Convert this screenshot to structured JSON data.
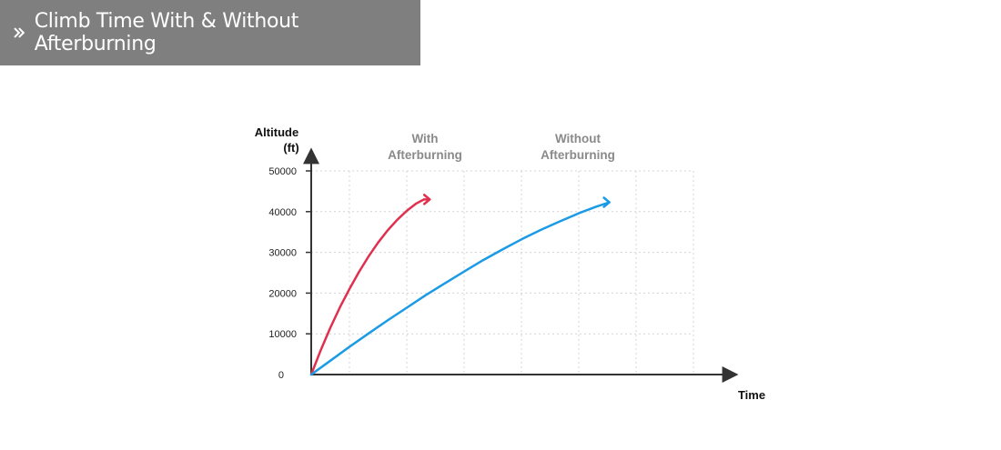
{
  "header": {
    "title": "Climb Time With & Without Afterburning"
  },
  "chart_data": {
    "type": "line",
    "xlabel": "Time",
    "ylabel": [
      "Altitude",
      "(ft)"
    ],
    "yticks": [
      0,
      10000,
      20000,
      30000,
      40000,
      50000
    ],
    "ylim": [
      0,
      50000
    ],
    "xlim": [
      0,
      10
    ],
    "x_gridlines": [
      1,
      2.5,
      4,
      5.5,
      7,
      8.5,
      10
    ],
    "grid": true,
    "colors": {
      "with": "#e0304e",
      "without": "#1b9be6",
      "axis": "#333333",
      "grid": "#d4d4d4",
      "label": "#8a8a8a"
    },
    "series": [
      {
        "name": [
          "With",
          "Afterburning"
        ],
        "key": "with",
        "x": [
          0,
          0.25,
          0.5,
          0.75,
          1,
          1.25,
          1.5,
          1.75,
          2,
          2.25,
          2.5,
          2.75,
          2.95,
          3.1
        ],
        "values": [
          0,
          6000,
          11500,
          16500,
          21000,
          25200,
          29000,
          32400,
          35400,
          38000,
          40200,
          42000,
          43000,
          43000
        ]
      },
      {
        "name": [
          "Without",
          "Afterburning"
        ],
        "key": "without",
        "x": [
          0,
          0.5,
          1,
          1.5,
          2,
          2.5,
          3,
          3.5,
          4,
          4.5,
          5,
          5.5,
          6,
          6.5,
          7,
          7.45,
          7.8
        ],
        "values": [
          0,
          3400,
          6800,
          10100,
          13300,
          16400,
          19500,
          22400,
          25300,
          28100,
          30700,
          33200,
          35500,
          37600,
          39600,
          41200,
          42300
        ]
      }
    ]
  }
}
